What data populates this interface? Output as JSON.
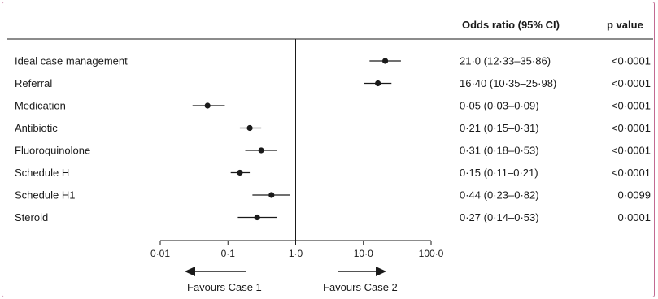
{
  "chart_data": {
    "type": "forest",
    "columns": {
      "or_header": "Odds ratio (95% CI)",
      "p_header": "p value"
    },
    "xscale": "log",
    "xlim": [
      0.01,
      100
    ],
    "xticks": [
      {
        "value": 0.01,
        "label": "0·01"
      },
      {
        "value": 0.1,
        "label": "0·1"
      },
      {
        "value": 1,
        "label": "1·0"
      },
      {
        "value": 10,
        "label": "10·0"
      },
      {
        "value": 100,
        "label": "100·0"
      }
    ],
    "reference_line": 1,
    "favours_left": "Favours Case 1",
    "favours_right": "Favours Case 2",
    "rows": [
      {
        "label": "Ideal case management",
        "or": 21.0,
        "lo": 12.33,
        "hi": 35.86,
        "ci_text": "21·0 (12·33–35·86)",
        "p": "<0·0001"
      },
      {
        "label": "Referral",
        "or": 16.4,
        "lo": 10.35,
        "hi": 25.98,
        "ci_text": "16·40 (10·35–25·98)",
        "p": "<0·0001"
      },
      {
        "label": "Medication",
        "or": 0.05,
        "lo": 0.03,
        "hi": 0.09,
        "ci_text": "0·05 (0·03–0·09)",
        "p": "<0·0001"
      },
      {
        "label": "Antibiotic",
        "or": 0.21,
        "lo": 0.15,
        "hi": 0.31,
        "ci_text": "0·21 (0·15–0·31)",
        "p": "<0·0001"
      },
      {
        "label": "Fluoroquinolone",
        "or": 0.31,
        "lo": 0.18,
        "hi": 0.53,
        "ci_text": "0·31 (0·18–0·53)",
        "p": "<0·0001"
      },
      {
        "label": "Schedule H",
        "or": 0.15,
        "lo": 0.11,
        "hi": 0.21,
        "ci_text": "0·15 (0·11–0·21)",
        "p": "<0·0001"
      },
      {
        "label": "Schedule H1",
        "or": 0.44,
        "lo": 0.23,
        "hi": 0.82,
        "ci_text": "0·44 (0·23–0·82)",
        "p": "0·0099"
      },
      {
        "label": "Steroid",
        "or": 0.27,
        "lo": 0.14,
        "hi": 0.53,
        "ci_text": "0·27 (0·14–0·53)",
        "p": "0·0001"
      }
    ]
  }
}
